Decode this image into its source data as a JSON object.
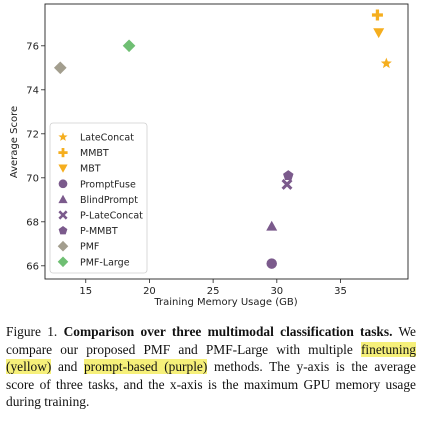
{
  "chart_data": {
    "type": "scatter",
    "xlabel": "Training Memory Usage (GB)",
    "ylabel": "Average Score",
    "xlim": [
      11.8,
      40.3
    ],
    "ylim": [
      65.4,
      77.9
    ],
    "x_ticks": [
      "15",
      "20",
      "25",
      "30",
      "35"
    ],
    "y_ticks": [
      "66",
      "68",
      "70",
      "72",
      "74",
      "76"
    ],
    "grid": false,
    "legend_position": "left",
    "series": [
      {
        "name": "LateConcat",
        "marker": "star",
        "color": "#f5ae1e",
        "points": [
          [
            38.6,
            75.2
          ]
        ]
      },
      {
        "name": "MMBT",
        "marker": "plus",
        "color": "#f5ae1e",
        "points": [
          [
            37.9,
            77.4
          ]
        ]
      },
      {
        "name": "MBT",
        "marker": "triangle-down",
        "color": "#f5ae1e",
        "points": [
          [
            38.0,
            76.6
          ]
        ]
      },
      {
        "name": "PromptFuse",
        "marker": "circle",
        "color": "#7b5a8c",
        "points": [
          [
            29.6,
            66.1
          ]
        ]
      },
      {
        "name": "BlindPrompt",
        "marker": "triangle-up",
        "color": "#7b5a8c",
        "points": [
          [
            29.6,
            67.8
          ]
        ]
      },
      {
        "name": "P-LateConcat",
        "marker": "x",
        "color": "#7b5a8c",
        "points": [
          [
            30.8,
            69.7
          ]
        ]
      },
      {
        "name": "P-MMBT",
        "marker": "pentagon",
        "color": "#7b5a8c",
        "points": [
          [
            30.9,
            70.1
          ]
        ]
      },
      {
        "name": "PMF",
        "marker": "diamond",
        "color": "#a39e8e",
        "points": [
          [
            13.0,
            75.0
          ]
        ]
      },
      {
        "name": "PMF-Large",
        "marker": "diamond",
        "color": "#6fbf73",
        "points": [
          [
            18.4,
            76.0
          ]
        ]
      }
    ]
  },
  "caption": {
    "label": "Figure 1.",
    "title": "Comparison over three multimodal classification tasks.",
    "text_1": "We compare our proposed PMF and PMF-Large with multiple",
    "highlight_1": "finetuning (yellow)",
    "text_2": "and",
    "highlight_2": "prompt-based (purple)",
    "text_3": "methods. The y-axis is the average score of three tasks, and the x-axis is the maximum GPU memory usage during training."
  }
}
